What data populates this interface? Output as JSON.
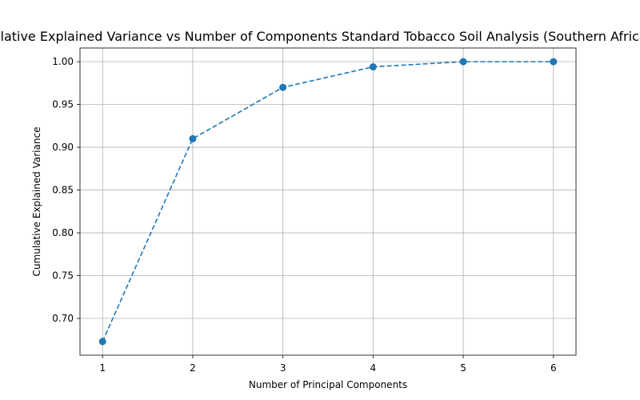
{
  "chart_data": {
    "type": "line",
    "title": "Cumulative Explained Variance vs Number of Components Standard Tobacco Soil Analysis (Southern Africa).csv",
    "xlabel": "Number of Principal Components",
    "ylabel": "Cumulative Explained Variance",
    "x": [
      1,
      2,
      3,
      4,
      5,
      6
    ],
    "series": [
      {
        "values": [
          0.673,
          0.91,
          0.97,
          0.994,
          1.0,
          1.0
        ]
      }
    ],
    "xticks": [
      "1",
      "2",
      "3",
      "4",
      "5",
      "6"
    ],
    "yticks": [
      "0.70",
      "0.75",
      "0.80",
      "0.85",
      "0.90",
      "0.95",
      "1.00"
    ],
    "xlim": [
      0.75,
      6.25
    ],
    "ylim": [
      0.657,
      1.016
    ],
    "grid": true,
    "line_style": "dashed",
    "marker": "circle",
    "color": "#1f77b4"
  }
}
